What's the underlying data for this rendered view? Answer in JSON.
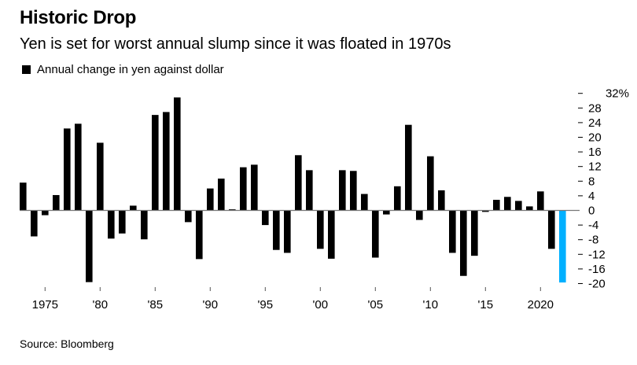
{
  "title": "Historic Drop",
  "subtitle": "Yen is set for worst annual slump since it was floated in 1970s",
  "legend": [
    {
      "label": "Annual change in yen against dollar",
      "color": "#000000"
    }
  ],
  "source": "Source: Bloomberg",
  "colors": {
    "bar": "#000000",
    "highlight": "#00b0ff",
    "zero_line": "#777777"
  },
  "chart_data": {
    "type": "bar",
    "title": "Historic Drop",
    "subtitle": "Yen is set for worst annual slump since it was floated in 1970s",
    "xlabel": "",
    "ylabel": "",
    "ylim": [
      -20,
      32
    ],
    "y_ticks": [
      32,
      28,
      24,
      20,
      16,
      12,
      8,
      4,
      0,
      -4,
      -8,
      -12,
      -16,
      -20
    ],
    "y_tick_labels": [
      "32%",
      "28",
      "24",
      "20",
      "16",
      "12",
      "8",
      "4",
      "0",
      "-4",
      "-8",
      "-12",
      "-16",
      "-20"
    ],
    "y_axis_side": "right",
    "x_ticks": [
      1975,
      1980,
      1985,
      1990,
      1995,
      2000,
      2005,
      2010,
      2015,
      2020
    ],
    "x_tick_labels": [
      "1975",
      "'80",
      "'85",
      "'90",
      "'95",
      "'00",
      "'05",
      "'10",
      "'15",
      "2020"
    ],
    "grid": false,
    "legend_position": "top-left",
    "highlight_category": 2022,
    "categories": [
      1973,
      1974,
      1975,
      1976,
      1977,
      1978,
      1979,
      1980,
      1981,
      1982,
      1983,
      1984,
      1985,
      1986,
      1987,
      1988,
      1989,
      1990,
      1991,
      1992,
      1993,
      1994,
      1995,
      1996,
      1997,
      1998,
      1999,
      2000,
      2001,
      2002,
      2003,
      2004,
      2005,
      2006,
      2007,
      2008,
      2009,
      2010,
      2011,
      2012,
      2013,
      2014,
      2015,
      2016,
      2017,
      2018,
      2019,
      2020,
      2021,
      2022
    ],
    "series": [
      {
        "name": "Annual change in yen against dollar",
        "values": [
          7.6,
          -7.1,
          -1.3,
          4.2,
          22.4,
          23.7,
          -19.6,
          18.5,
          -7.7,
          -6.3,
          1.3,
          -7.9,
          26.1,
          26.9,
          30.9,
          -3.2,
          -13.3,
          6.0,
          8.7,
          0.3,
          11.8,
          12.5,
          -4.0,
          -10.8,
          -11.6,
          15.1,
          11.0,
          -10.5,
          -13.2,
          11.0,
          10.8,
          4.5,
          -12.9,
          -1.1,
          6.6,
          23.4,
          -2.6,
          14.8,
          5.5,
          -11.6,
          -17.9,
          -12.4,
          -0.4,
          2.9,
          3.7,
          2.6,
          1.1,
          5.2,
          -10.5,
          -19.7
        ]
      }
    ]
  }
}
